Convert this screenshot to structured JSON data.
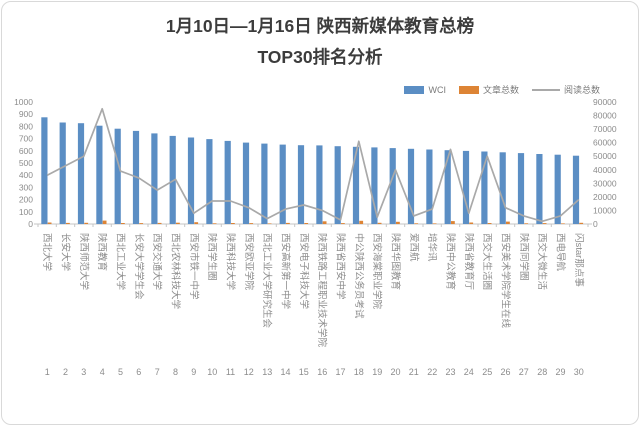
{
  "title": {
    "line1": "1月10日—1月16日 陕西新媒体教育总榜",
    "line2": "TOP30排名分析"
  },
  "legend": {
    "items": [
      {
        "label": "WCI",
        "color": "#5b8ec4",
        "type": "bar"
      },
      {
        "label": "文章总数",
        "color": "#dd8435",
        "type": "bar"
      },
      {
        "label": "阅读总数",
        "color": "#a9a9a9",
        "type": "line"
      }
    ]
  },
  "chart_data": {
    "type": "bar",
    "subtype": "bar+line-dual-axis",
    "title": "1月10日—1月16日 陕西新媒体教育总榜 TOP30排名分析",
    "categories": [
      "西北大学",
      "长安大学",
      "陕西师范大学",
      "陕西教育",
      "西北工业大学",
      "长安大学学生会",
      "西安交通大学",
      "西北农林科技大学",
      "西安市铁一中学",
      "陕西学生圈",
      "陕西科技大学",
      "西安欧亚学院",
      "西北工业大学研究生会",
      "西安高新第一中学",
      "西安电子科技大学",
      "陕西铁路工程职业技术学院",
      "陕西省西安中学",
      "中公陕西公务员考试",
      "西安海棠职业学院",
      "陕西华图教育",
      "爱西航",
      "培华讯",
      "陕西中公教育",
      "陕西省教育厅",
      "西交大生活圈",
      "西安美术学院学生在线",
      "陕西同学圈",
      "西交大微生活",
      "西电导航",
      "闪star那点事"
    ],
    "ranks": [
      1,
      2,
      3,
      4,
      5,
      6,
      7,
      8,
      9,
      10,
      11,
      12,
      13,
      14,
      15,
      16,
      17,
      18,
      19,
      20,
      21,
      22,
      23,
      24,
      25,
      26,
      27,
      28,
      29,
      30
    ],
    "series": [
      {
        "name": "WCI",
        "type": "bar",
        "axis": "left",
        "color": "#5b8ec4",
        "values": [
          875,
          832,
          826,
          806,
          781,
          763,
          743,
          722,
          709,
          696,
          681,
          667,
          659,
          651,
          646,
          644,
          638,
          633,
          628,
          622,
          616,
          611,
          605,
          599,
          594,
          588,
          581,
          574,
          568,
          560
        ]
      },
      {
        "name": "文章总数",
        "type": "bar",
        "axis": "left",
        "color": "#dd8435",
        "values": [
          12,
          9,
          10,
          28,
          8,
          7,
          9,
          11,
          15,
          6,
          8,
          7,
          5,
          9,
          8,
          22,
          7,
          26,
          10,
          18,
          6,
          5,
          24,
          12,
          8,
          20,
          6,
          7,
          5,
          10
        ]
      },
      {
        "name": "阅读总数",
        "type": "line",
        "axis": "right",
        "color": "#a9a9a9",
        "values": [
          36000,
          43000,
          50000,
          85000,
          39000,
          34000,
          25000,
          33000,
          8000,
          17000,
          17000,
          12000,
          4000,
          11000,
          14000,
          10000,
          3000,
          61000,
          5000,
          40000,
          6000,
          11000,
          55000,
          8000,
          50000,
          12000,
          6000,
          2000,
          6000,
          18000
        ]
      }
    ],
    "left_axis": {
      "min": 0,
      "max": 1000,
      "step": 100,
      "ticks": [
        0,
        100,
        200,
        300,
        400,
        500,
        600,
        700,
        800,
        900,
        1000
      ]
    },
    "right_axis": {
      "min": 0,
      "max": 90000,
      "step": 10000,
      "ticks": [
        0,
        10000,
        20000,
        30000,
        40000,
        50000,
        60000,
        70000,
        80000,
        90000
      ]
    },
    "grid": false,
    "legend_position": "top-right"
  }
}
